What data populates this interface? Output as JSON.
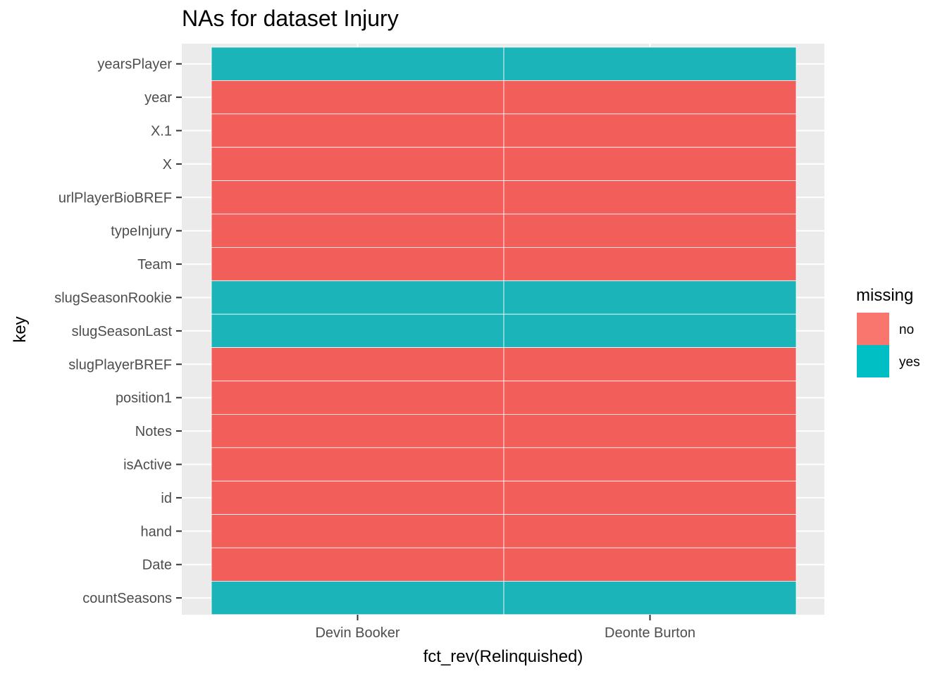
{
  "chart_data": {
    "type": "heatmap",
    "title": "NAs for dataset Injury",
    "xlabel": "fct_rev(Relinquished)",
    "ylabel": "key",
    "x_categories": [
      "Devin Booker",
      "Deonte Burton"
    ],
    "y_categories": [
      "yearsPlayer",
      "year",
      "X.1",
      "X",
      "urlPlayerBioBREF",
      "typeInjury",
      "Team",
      "slugSeasonRookie",
      "slugSeasonLast",
      "slugPlayerBREF",
      "position1",
      "Notes",
      "isActive",
      "id",
      "hand",
      "Date",
      "countSeasons"
    ],
    "values": [
      [
        "yes",
        "yes"
      ],
      [
        "no",
        "no"
      ],
      [
        "no",
        "no"
      ],
      [
        "no",
        "no"
      ],
      [
        "no",
        "no"
      ],
      [
        "no",
        "no"
      ],
      [
        "no",
        "no"
      ],
      [
        "yes",
        "yes"
      ],
      [
        "yes",
        "yes"
      ],
      [
        "no",
        "no"
      ],
      [
        "no",
        "no"
      ],
      [
        "no",
        "no"
      ],
      [
        "no",
        "no"
      ],
      [
        "no",
        "no"
      ],
      [
        "no",
        "no"
      ],
      [
        "no",
        "no"
      ],
      [
        "yes",
        "yes"
      ]
    ],
    "legend": {
      "title": "missing",
      "position": "right",
      "items": [
        {
          "label": "no",
          "color": "#F8766D"
        },
        {
          "label": "yes",
          "color": "#00BFC4"
        }
      ]
    },
    "colors": {
      "no": "#F25E5A",
      "yes": "#1AB4B9",
      "panel": "#EBEBEB",
      "grid": "#FFFFFF"
    },
    "grid": true
  }
}
